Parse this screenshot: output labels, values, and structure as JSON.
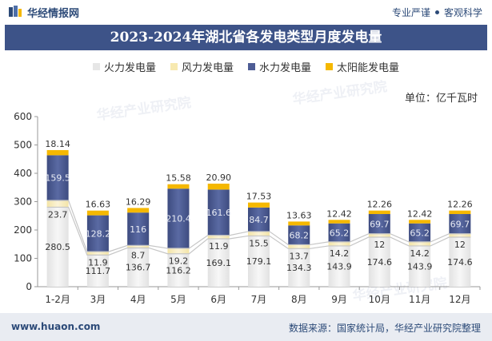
{
  "header": {
    "logo_text": "华经情报网",
    "slogan_left": "专业严谨",
    "slogan_right": "客观科学"
  },
  "title": "2023-2024年湖北省各发电类型月度发电量",
  "unit_label": "单位：亿千瓦时",
  "footer": {
    "website": "www.huaon.com",
    "source": "数据来源：国家统计局，华经产业研究院整理"
  },
  "watermark": "华经产业研究院",
  "colors": {
    "thermal": "#f2f2f2",
    "wind": "#faf0c8",
    "hydro": "#4e5d95",
    "solar": "#f5b800",
    "title_bg": "#3d5388",
    "line": "#bfbfbf"
  },
  "chart_data": {
    "type": "bar",
    "stacked": true,
    "categories": [
      "1-2月",
      "3月",
      "4月",
      "5月",
      "6月",
      "7月",
      "8月",
      "9月",
      "10月",
      "11月",
      "12月"
    ],
    "series": [
      {
        "name": "火力发电量",
        "key": "thermal",
        "values": [
          280.5,
          111.7,
          136.7,
          116.2,
          169.1,
          179.1,
          134.3,
          143.9,
          174.6,
          143.9,
          174.6
        ]
      },
      {
        "name": "风力发电量",
        "key": "wind",
        "values": [
          23.7,
          11.9,
          8.7,
          19.2,
          11.9,
          15.5,
          13.7,
          14.2,
          12,
          14.2,
          12
        ]
      },
      {
        "name": "水力发电量",
        "key": "hydro",
        "values": [
          159.5,
          128.2,
          116,
          210.4,
          161.6,
          84.7,
          68.2,
          65.2,
          69.7,
          65.2,
          69.7
        ]
      },
      {
        "name": "太阳能发电量",
        "key": "solar",
        "values": [
          18.14,
          16.63,
          16.29,
          15.58,
          20.9,
          17.53,
          13.63,
          12.42,
          12.26,
          12.42,
          12.26
        ]
      }
    ],
    "solar_labels": [
      "18.14",
      "16.63",
      "16.29",
      "15.58",
      "20.90",
      "17.53",
      "13.63",
      "12.42",
      "12.26",
      "12.42",
      "12.26"
    ],
    "ylim": [
      0,
      600
    ],
    "yticks": [
      0,
      100,
      200,
      300,
      400,
      500,
      600
    ],
    "legend_position": "top-center",
    "grid": false
  }
}
